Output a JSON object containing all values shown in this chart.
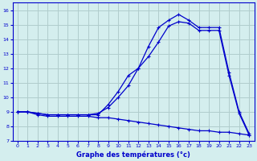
{
  "xlabel": "Graphe des températures (°c)",
  "bg_color": "#d4eeee",
  "grid_color": "#b0cccc",
  "line_color": "#0000cc",
  "xlim": [
    -0.5,
    23.5
  ],
  "ylim": [
    7,
    16.5
  ],
  "xticks": [
    0,
    1,
    2,
    3,
    4,
    5,
    6,
    7,
    8,
    9,
    10,
    11,
    12,
    13,
    14,
    15,
    16,
    17,
    18,
    19,
    20,
    21,
    22,
    23
  ],
  "yticks": [
    7,
    8,
    9,
    10,
    11,
    12,
    13,
    14,
    15,
    16
  ],
  "line1_x": [
    0,
    1,
    2,
    3,
    4,
    5,
    6,
    7,
    8,
    9,
    10,
    11,
    12,
    13,
    14,
    15,
    16,
    17,
    18,
    19,
    20,
    21,
    22,
    23
  ],
  "line1_y": [
    9.0,
    9.0,
    8.9,
    8.8,
    8.8,
    8.8,
    8.8,
    8.8,
    8.8,
    9.5,
    10.4,
    11.5,
    12.0,
    13.5,
    14.8,
    15.3,
    15.7,
    15.3,
    14.8,
    14.8,
    14.8,
    11.7,
    9.0,
    7.5
  ],
  "line2_x": [
    0,
    1,
    2,
    3,
    4,
    5,
    6,
    7,
    8,
    9,
    10,
    11,
    12,
    13,
    14,
    15,
    16,
    17,
    18,
    19,
    20,
    21,
    22,
    23
  ],
  "line2_y": [
    9.0,
    9.0,
    8.9,
    8.8,
    8.8,
    8.8,
    8.8,
    8.8,
    8.9,
    9.3,
    10.0,
    10.8,
    12.0,
    12.8,
    13.8,
    14.9,
    15.2,
    15.1,
    14.6,
    14.6,
    14.6,
    11.5,
    8.9,
    7.4
  ],
  "line3_x": [
    0,
    1,
    2,
    3,
    4,
    5,
    6,
    7,
    8,
    9,
    10,
    11,
    12,
    13,
    14,
    15,
    16,
    17,
    18,
    19,
    20,
    21,
    22,
    23
  ],
  "line3_y": [
    9.0,
    9.0,
    8.8,
    8.7,
    8.7,
    8.7,
    8.7,
    8.7,
    8.6,
    8.6,
    8.5,
    8.4,
    8.3,
    8.2,
    8.1,
    8.0,
    7.9,
    7.8,
    7.7,
    7.7,
    7.6,
    7.6,
    7.5,
    7.4
  ]
}
